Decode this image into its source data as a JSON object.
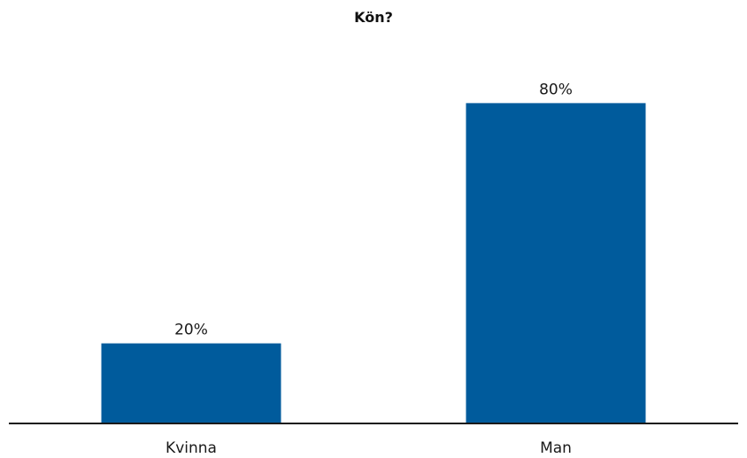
{
  "chart_data": {
    "type": "bar",
    "title": "Kön?",
    "categories": [
      "Kvinna",
      "Man"
    ],
    "values": [
      20,
      80
    ],
    "data_labels": [
      "20%",
      "80%"
    ],
    "unit": "%",
    "ylim": [
      0,
      100
    ],
    "grid": false,
    "legend": "none",
    "bar_color": "#005b9c",
    "axis_color": "#1a1a1a"
  }
}
